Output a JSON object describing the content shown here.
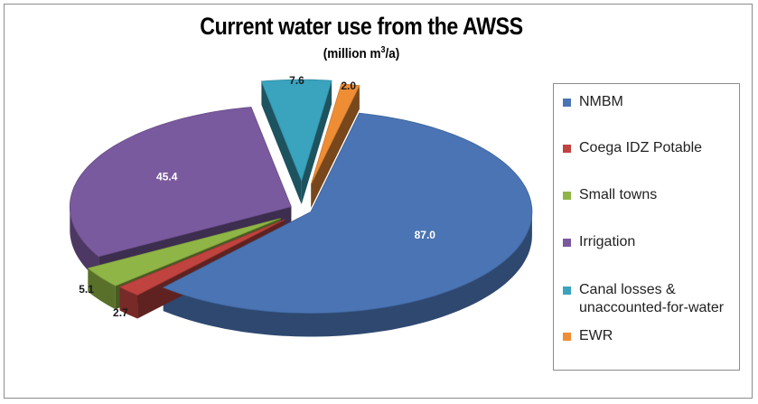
{
  "chart_data": {
    "type": "pie",
    "title": "Current water use from the AWSS",
    "subtitle_main": "(million m",
    "subtitle_sup": "3",
    "subtitle_end": "/a)",
    "legend_position": "right",
    "slices": [
      {
        "name": "NMBM",
        "value": 87.0,
        "label": "87.0",
        "color": "#4a74b4"
      },
      {
        "name": "Coega IDZ Potable",
        "value": 2.7,
        "label": "2.7",
        "color": "#c0433f"
      },
      {
        "name": "Small towns",
        "value": 5.1,
        "label": "5.1",
        "color": "#8fb546"
      },
      {
        "name": "Irrigation",
        "value": 45.4,
        "label": "45.4",
        "color": "#7a5a9e"
      },
      {
        "name": "Canal losses & unaccounted-for-water",
        "value": 7.6,
        "label": "7.6",
        "color": "#3aa3be"
      },
      {
        "name": "EWR",
        "value": 2.0,
        "label": "2.0",
        "color": "#ef8d35"
      }
    ]
  },
  "legend": {
    "items": [
      {
        "line1": "NMBM",
        "line2": ""
      },
      {
        "line1": "Coega IDZ Potable",
        "line2": ""
      },
      {
        "line1": "Small towns",
        "line2": ""
      },
      {
        "line1": "Irrigation",
        "line2": ""
      },
      {
        "line1": "Canal losses &",
        "line2": "unaccounted-for-water"
      },
      {
        "line1": "EWR",
        "line2": ""
      }
    ]
  }
}
